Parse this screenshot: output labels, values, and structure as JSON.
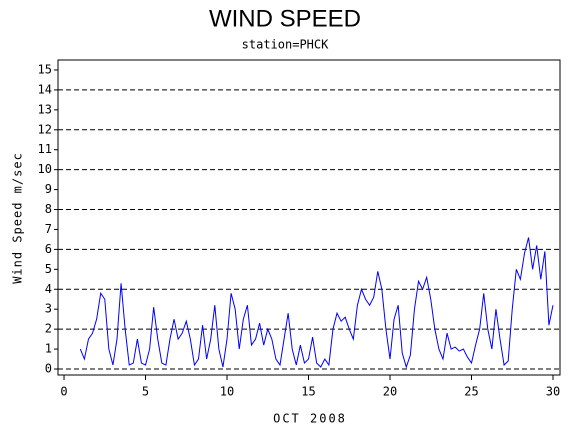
{
  "chart_data": {
    "type": "line",
    "title": "WIND SPEED",
    "subtitle": "station=PHCK",
    "x_label": "OCT 2008",
    "y_label": "Wind Speed m/sec",
    "xlim": [
      -0.37,
      30.43
    ],
    "ylim": [
      -0.3,
      15.5
    ],
    "xticks": [
      0,
      5,
      10,
      15,
      20,
      25,
      30
    ],
    "yticks": [
      0,
      1,
      2,
      3,
      4,
      5,
      6,
      7,
      8,
      9,
      10,
      11,
      12,
      13,
      14,
      15
    ],
    "ygrid": [
      0,
      2,
      4,
      6,
      8,
      10,
      12,
      14
    ],
    "grid": true,
    "x": [
      1,
      1.25,
      1.5,
      1.75,
      2,
      2.25,
      2.5,
      2.75,
      3,
      3.25,
      3.5,
      3.75,
      4,
      4.25,
      4.5,
      4.75,
      5,
      5.25,
      5.5,
      5.75,
      6,
      6.25,
      6.5,
      6.75,
      7,
      7.25,
      7.5,
      7.75,
      8,
      8.25,
      8.5,
      8.75,
      9,
      9.25,
      9.5,
      9.75,
      10,
      10.25,
      10.5,
      10.75,
      11,
      11.25,
      11.5,
      11.75,
      12,
      12.25,
      12.5,
      12.75,
      13,
      13.25,
      13.5,
      13.75,
      14,
      14.25,
      14.5,
      14.75,
      15,
      15.25,
      15.5,
      15.75,
      16,
      16.25,
      16.5,
      16.75,
      17,
      17.25,
      17.5,
      17.75,
      18,
      18.25,
      18.5,
      18.75,
      19,
      19.25,
      19.5,
      19.75,
      20,
      20.25,
      20.5,
      20.75,
      21,
      21.25,
      21.5,
      21.75,
      22,
      22.25,
      22.5,
      22.75,
      23,
      23.25,
      23.5,
      23.75,
      24,
      24.25,
      24.5,
      24.75,
      25,
      25.25,
      25.5,
      25.75,
      26,
      26.25,
      26.5,
      26.75,
      27,
      27.25,
      27.5,
      27.75,
      28,
      28.25,
      28.5,
      28.75,
      29,
      29.25,
      29.5,
      29.75,
      30
    ],
    "series": [
      {
        "name": "Wind Speed",
        "color": "#0000ff",
        "values": [
          1,
          0.5,
          1.5,
          1.8,
          2.5,
          3.8,
          3.5,
          1,
          0.2,
          1.5,
          4.3,
          2,
          0.2,
          0.3,
          1.5,
          0.3,
          0.2,
          1,
          3.1,
          1.5,
          0.3,
          0.2,
          1.5,
          2.5,
          1.5,
          1.8,
          2.4,
          1.5,
          0.2,
          0.5,
          2.2,
          0.5,
          1.5,
          3.2,
          1,
          0.1,
          1.5,
          3.8,
          3,
          1,
          2.5,
          3.2,
          1.2,
          1.5,
          2.3,
          1.2,
          2,
          1.5,
          0.5,
          0.2,
          1.5,
          2.8,
          1,
          0.2,
          1.2,
          0.3,
          0.5,
          1.6,
          0.3,
          0.1,
          0.5,
          0.2,
          2,
          2.8,
          2.4,
          2.6,
          2,
          1.5,
          3.2,
          4,
          3.5,
          3.2,
          3.6,
          4.9,
          4,
          2,
          0.5,
          2.5,
          3.2,
          0.8,
          0.1,
          0.7,
          3,
          4.4,
          4,
          4.6,
          3.5,
          2,
          1,
          0.5,
          1.8,
          1,
          1.1,
          0.9,
          1,
          0.6,
          0.3,
          1.2,
          2,
          3.8,
          2,
          1,
          3,
          1.5,
          0.2,
          0.4,
          3,
          5,
          4.5,
          5.8,
          6.6,
          5,
          6.2,
          4.5,
          5.9,
          2.2,
          3.2
        ]
      }
    ]
  }
}
